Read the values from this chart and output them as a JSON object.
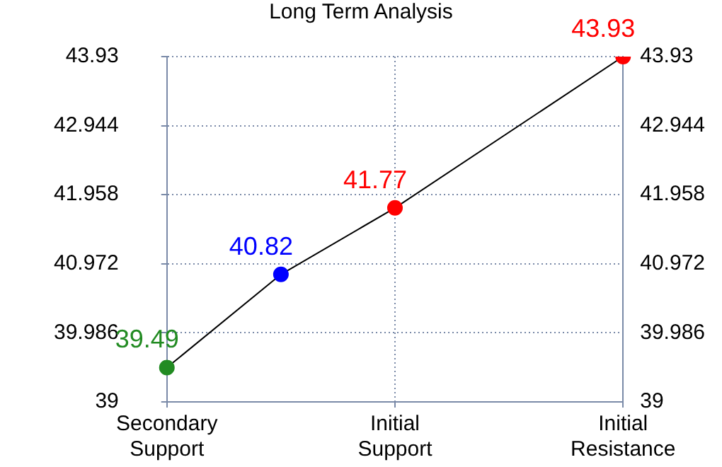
{
  "chart_data": {
    "type": "line",
    "title": "Long Term Analysis",
    "categories": [
      "Secondary Support",
      null,
      "Initial Support",
      null,
      "Initial Resistance"
    ],
    "series": [
      {
        "color": "#000000",
        "colors": [
          "#228b22",
          "#0000ff",
          "#ff0000",
          null,
          "#ff0000"
        ],
        "values": [
          39.49,
          40.82,
          41.77,
          null,
          43.93
        ]
      }
    ],
    "ylim": [
      39,
      43.93
    ],
    "yticks": [
      39,
      39.986,
      40.972,
      41.958,
      42.944,
      43.93
    ],
    "y2lim": [
      39,
      43.93
    ],
    "y2ticks": [
      39,
      39.986,
      40.972,
      41.958,
      42.944,
      43.93
    ],
    "grid": true,
    "marker": "circle",
    "line_style": "solid",
    "data_labels": true
  }
}
